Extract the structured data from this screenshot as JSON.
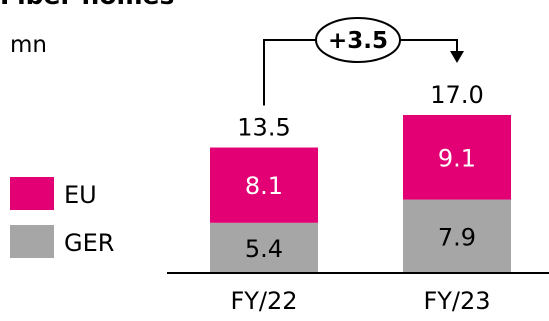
{
  "title": "Fiber homes",
  "unit": "mn",
  "colors": {
    "EU": "#E20074",
    "GER": "#A6A6A6",
    "axis": "#000000"
  },
  "chart_data": {
    "type": "bar",
    "stacked": true,
    "title": "Fiber homes",
    "ylabel": "mn",
    "categories": [
      "FY/22",
      "FY/23"
    ],
    "series": [
      {
        "name": "GER",
        "values": [
          5.4,
          7.9
        ]
      },
      {
        "name": "EU",
        "values": [
          8.1,
          9.1
        ]
      }
    ],
    "totals": [
      13.5,
      17.0
    ],
    "total_labels": [
      "13.5",
      "17.0"
    ],
    "value_labels": {
      "GER": [
        "5.4",
        "7.9"
      ],
      "EU": [
        "8.1",
        "9.1"
      ]
    },
    "ylim": [
      0,
      17.0
    ],
    "legend": {
      "placement": "left",
      "entries": [
        "EU",
        "GER"
      ]
    },
    "annotations": [
      {
        "text": "+3.5",
        "from": "FY/22",
        "to": "FY/23"
      }
    ],
    "grid": false
  }
}
